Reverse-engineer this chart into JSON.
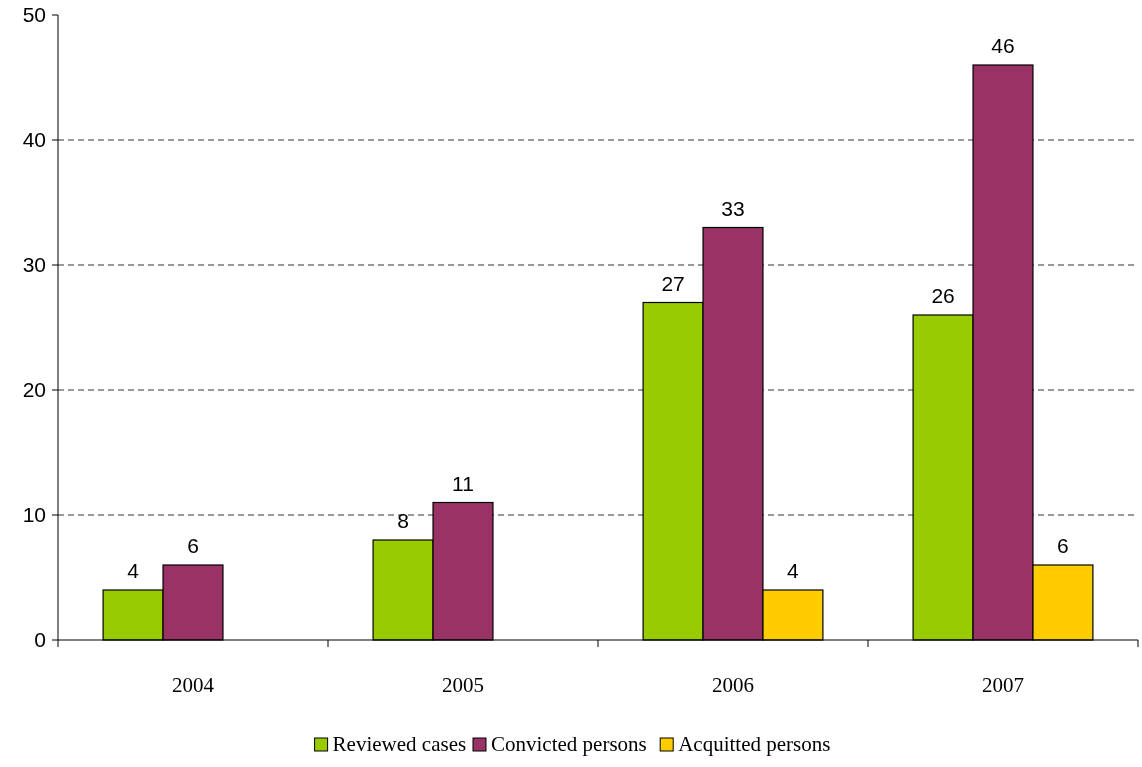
{
  "chart_data": {
    "type": "bar",
    "categories": [
      "2004",
      "2005",
      "2006",
      "2007"
    ],
    "series": [
      {
        "name": "Reviewed cases",
        "color": "#99cc00",
        "values": [
          4,
          8,
          27,
          26
        ]
      },
      {
        "name": "Convicted persons",
        "color": "#993366",
        "values": [
          6,
          11,
          33,
          46
        ]
      },
      {
        "name": "Acquitted persons",
        "color": "#ffcc00",
        "values": [
          null,
          null,
          4,
          6
        ]
      }
    ],
    "ylim": [
      0,
      50
    ],
    "yticks": [
      0,
      10,
      20,
      30,
      40,
      50
    ],
    "grid": "y",
    "line_style": "dashed",
    "data_labels": true,
    "legend": "bottom"
  }
}
